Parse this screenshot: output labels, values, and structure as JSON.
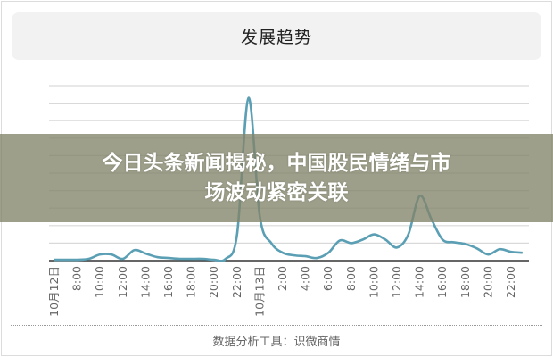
{
  "chart_data": {
    "type": "line",
    "title": "发展趋势",
    "xlabel": "",
    "ylabel": "",
    "ylim": [
      0,
      10
    ],
    "grid": true,
    "x_tick_labels": [
      "10月12日",
      "8:00",
      "10:00",
      "12:00",
      "14:00",
      "16:00",
      "18:00",
      "20:00",
      "22:00",
      "10月13日",
      "2:00",
      "4:00",
      "6:00",
      "8:00",
      "10:00",
      "12:00",
      "14:00",
      "16:00",
      "18:00",
      "20:00",
      "22:00"
    ],
    "x": [
      "10-12 06:00",
      "10-12 07:00",
      "10-12 08:00",
      "10-12 09:00",
      "10-12 10:00",
      "10-12 11:00",
      "10-12 12:00",
      "10-12 13:00",
      "10-12 14:00",
      "10-12 15:00",
      "10-12 16:00",
      "10-12 17:00",
      "10-12 18:00",
      "10-12 19:00",
      "10-12 20:00",
      "10-12 21:00",
      "10-12 22:00",
      "10-12 23:00",
      "10-13 00:00",
      "10-13 01:00",
      "10-13 02:00",
      "10-13 03:00",
      "10-13 04:00",
      "10-13 05:00",
      "10-13 06:00",
      "10-13 07:00",
      "10-13 08:00",
      "10-13 09:00",
      "10-13 10:00",
      "10-13 11:00",
      "10-13 12:00",
      "10-13 13:00",
      "10-13 14:00",
      "10-13 15:00",
      "10-13 16:00",
      "10-13 17:00",
      "10-13 18:00",
      "10-13 19:00",
      "10-13 20:00",
      "10-13 21:00",
      "10-13 22:00",
      "10-13 23:00"
    ],
    "series": [
      {
        "values": [
          0.05,
          0.05,
          0.05,
          0.1,
          0.35,
          0.35,
          0.1,
          0.6,
          0.4,
          0.2,
          0.15,
          0.1,
          0.1,
          0.1,
          0.05,
          0.1,
          1.5,
          9.3,
          2.5,
          1.0,
          0.45,
          0.3,
          0.25,
          0.15,
          0.45,
          1.15,
          1.0,
          1.2,
          1.5,
          1.2,
          0.75,
          1.5,
          3.7,
          2.4,
          1.2,
          1.05,
          0.95,
          0.7,
          0.35,
          0.65,
          0.5,
          0.45
        ]
      }
    ],
    "line_color": "#5b9fb5",
    "footer": "数据分析工具：识微商情"
  },
  "banner": {
    "line1": "今日头条新闻揭秘，中国股民情绪与市",
    "line2": "场波动紧密关联"
  }
}
